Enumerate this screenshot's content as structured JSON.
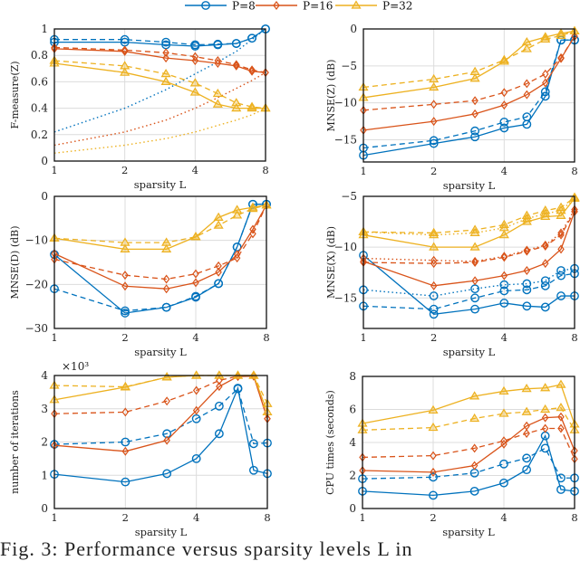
{
  "legend": [
    {
      "label": "P=8",
      "color": "#0072BD",
      "marker": "circle"
    },
    {
      "label": "P=16",
      "color": "#D95319",
      "marker": "diamond"
    },
    {
      "label": "P=32",
      "color": "#EDB120",
      "marker": "triangle"
    }
  ],
  "caption": "Fig. 3:  Performance versus sparsity levels L in",
  "chart_data": [
    {
      "type": "line",
      "ylabel": "F-measure(Z)",
      "xlabel": "sparsity L",
      "x": [
        1,
        2,
        3,
        4,
        5,
        6,
        7,
        8
      ],
      "xscale": "log2",
      "xticks": [
        1,
        2,
        4,
        8
      ],
      "ylim": [
        0,
        1
      ],
      "yticks": [
        "0",
        "0.2",
        "0.4",
        "0.6",
        "0.8",
        "1"
      ],
      "ytick_values": [
        0,
        0.2,
        0.4,
        0.6,
        0.8,
        1
      ],
      "grid": true,
      "series": [
        {
          "group": 0,
          "style": "solid",
          "markers": true,
          "values": [
            0.9,
            0.9,
            0.88,
            0.87,
            0.88,
            0.89,
            0.93,
            1.0
          ]
        },
        {
          "group": 0,
          "style": "dashed",
          "markers": true,
          "values": [
            0.92,
            0.92,
            0.9,
            0.88,
            0.885,
            0.89,
            0.93,
            1.0
          ]
        },
        {
          "group": 0,
          "style": "dotted",
          "markers": false,
          "values": [
            0.22,
            0.4,
            0.54,
            0.66,
            0.75,
            0.83,
            0.92,
            1.0
          ]
        },
        {
          "group": 1,
          "style": "solid",
          "markers": true,
          "values": [
            0.85,
            0.83,
            0.78,
            0.76,
            0.74,
            0.72,
            0.68,
            0.67
          ]
        },
        {
          "group": 1,
          "style": "dashed",
          "markers": true,
          "values": [
            0.86,
            0.84,
            0.82,
            0.79,
            0.76,
            0.73,
            0.69,
            0.67
          ]
        },
        {
          "group": 1,
          "style": "dotted",
          "markers": false,
          "values": [
            0.12,
            0.22,
            0.31,
            0.4,
            0.48,
            0.55,
            0.61,
            0.67
          ]
        },
        {
          "group": 2,
          "style": "solid",
          "markers": true,
          "values": [
            0.74,
            0.67,
            0.6,
            0.52,
            0.43,
            0.4,
            0.4,
            0.4
          ]
        },
        {
          "group": 2,
          "style": "dashed",
          "markers": true,
          "values": [
            0.76,
            0.72,
            0.66,
            0.59,
            0.51,
            0.44,
            0.41,
            0.4
          ]
        },
        {
          "group": 2,
          "style": "dotted",
          "markers": false,
          "values": [
            0.06,
            0.12,
            0.17,
            0.22,
            0.27,
            0.31,
            0.35,
            0.4
          ]
        }
      ]
    },
    {
      "type": "line",
      "ylabel": "MNSE(Z) (dB)",
      "xlabel": "sparsity L",
      "x": [
        1,
        2,
        3,
        4,
        5,
        6,
        7,
        8
      ],
      "xscale": "log2",
      "xticks": [
        1,
        2,
        4,
        8
      ],
      "ylim": [
        -18,
        0
      ],
      "yticks": [
        "−15",
        "−10",
        "−5",
        "0"
      ],
      "ytick_values": [
        -15,
        -10,
        -5,
        0
      ],
      "grid": true,
      "series": [
        {
          "group": 0,
          "style": "solid",
          "markers": true,
          "values": [
            -17.1,
            -15.5,
            -14.6,
            -13.4,
            -12.9,
            -9.1,
            -1.5,
            -1.5
          ]
        },
        {
          "group": 0,
          "style": "dashed",
          "markers": true,
          "values": [
            -16.1,
            -15.1,
            -13.8,
            -12.6,
            -11.9,
            -8.5,
            -1.5,
            -1.5
          ]
        },
        {
          "group": 1,
          "style": "solid",
          "markers": true,
          "values": [
            -13.7,
            -12.5,
            -11.5,
            -10.3,
            -8.9,
            -7.3,
            -4.0,
            -1.0
          ]
        },
        {
          "group": 1,
          "style": "dashed",
          "markers": true,
          "values": [
            -11.0,
            -10.2,
            -9.7,
            -8.6,
            -7.4,
            -6.1,
            -3.9,
            -1.0
          ]
        },
        {
          "group": 2,
          "style": "solid",
          "markers": true,
          "values": [
            -9.3,
            -7.9,
            -6.7,
            -4.4,
            -1.8,
            -1.1,
            -0.6,
            -0.3
          ]
        },
        {
          "group": 2,
          "style": "dashed",
          "markers": true,
          "values": [
            -7.9,
            -6.8,
            -5.8,
            -4.2,
            -2.7,
            -1.4,
            -0.9,
            -0.3
          ]
        }
      ]
    },
    {
      "type": "line",
      "ylabel": "MNSE(D) (dB)",
      "xlabel": "sparsity L",
      "x": [
        1,
        2,
        3,
        4,
        5,
        6,
        7,
        8
      ],
      "xscale": "log2",
      "xticks": [
        1,
        2,
        4,
        8
      ],
      "ylim": [
        -30,
        0
      ],
      "yticks": [
        "−30",
        "−20",
        "−10",
        "0"
      ],
      "ytick_values": [
        -30,
        -20,
        -10,
        0
      ],
      "grid": true,
      "series": [
        {
          "group": 0,
          "style": "solid",
          "markers": true,
          "values": [
            -13.2,
            -26.5,
            -25.2,
            -22.9,
            -19.8,
            -11.5,
            -1.8,
            -1.8
          ]
        },
        {
          "group": 0,
          "style": "dashed",
          "markers": true,
          "values": [
            -21.0,
            -26.0,
            -25.2,
            -22.7,
            -19.8,
            -11.5,
            -1.8,
            -1.8
          ]
        },
        {
          "group": 1,
          "style": "solid",
          "markers": true,
          "values": [
            -13.0,
            -20.4,
            -21.0,
            -19.6,
            -17.2,
            -13.2,
            -7.5,
            -2.0
          ]
        },
        {
          "group": 1,
          "style": "dashed",
          "markers": true,
          "values": [
            -14.3,
            -17.9,
            -18.8,
            -17.6,
            -15.8,
            -14.0,
            -8.5,
            -2.0
          ]
        },
        {
          "group": 2,
          "style": "solid",
          "markers": true,
          "values": [
            -9.5,
            -12.0,
            -12.0,
            -9.2,
            -4.8,
            -3.1,
            -2.5,
            -2.0
          ]
        },
        {
          "group": 2,
          "style": "dashed",
          "markers": true,
          "values": [
            -9.5,
            -10.5,
            -10.5,
            -9.2,
            -6.6,
            -4.3,
            -2.8,
            -2.0
          ]
        }
      ]
    },
    {
      "type": "line",
      "ylabel": "MNSE(X) (dB)",
      "xlabel": "sparsity L",
      "x": [
        1,
        2,
        3,
        4,
        5,
        6,
        7,
        8
      ],
      "xscale": "log2",
      "xticks": [
        1,
        2,
        4,
        8
      ],
      "ylim": [
        -18,
        -5
      ],
      "yticks": [
        "−15",
        "−10",
        "−5"
      ],
      "ytick_values": [
        -15,
        -10,
        -5
      ],
      "grid": true,
      "series": [
        {
          "group": 0,
          "style": "solid",
          "markers": true,
          "values": [
            -10.8,
            -16.6,
            -16.1,
            -15.5,
            -15.8,
            -15.9,
            -14.8,
            -14.8
          ]
        },
        {
          "group": 0,
          "style": "dashed",
          "markers": true,
          "values": [
            -15.8,
            -16.1,
            -15.0,
            -14.3,
            -14.2,
            -13.8,
            -12.8,
            -12.6
          ]
        },
        {
          "group": 0,
          "style": "dotted",
          "markers": true,
          "values": [
            -14.2,
            -14.8,
            -14.1,
            -13.7,
            -13.6,
            -13.3,
            -12.3,
            -12.1
          ]
        },
        {
          "group": 1,
          "style": "solid",
          "markers": true,
          "values": [
            -11.4,
            -13.8,
            -13.3,
            -12.8,
            -12.3,
            -11.6,
            -10.2,
            -6.5
          ]
        },
        {
          "group": 1,
          "style": "dashed",
          "markers": true,
          "values": [
            -11.5,
            -11.6,
            -11.5,
            -11.0,
            -10.4,
            -9.9,
            -8.8,
            -6.5
          ]
        },
        {
          "group": 1,
          "style": "dotted",
          "markers": true,
          "values": [
            -11.1,
            -11.3,
            -11.4,
            -10.9,
            -10.3,
            -9.8,
            -8.6,
            -6.3
          ]
        },
        {
          "group": 2,
          "style": "solid",
          "markers": true,
          "values": [
            -8.8,
            -10.0,
            -10.0,
            -8.8,
            -7.5,
            -7.0,
            -6.9,
            -5.2
          ]
        },
        {
          "group": 2,
          "style": "dashed",
          "markers": true,
          "values": [
            -8.5,
            -8.6,
            -8.3,
            -7.8,
            -6.9,
            -6.4,
            -6.1,
            -5.1
          ]
        },
        {
          "group": 2,
          "style": "dotted",
          "markers": true,
          "values": [
            -8.5,
            -8.8,
            -8.6,
            -8.1,
            -7.2,
            -6.7,
            -6.4,
            -5.2
          ]
        }
      ]
    },
    {
      "type": "line",
      "ylabel": "number of iterations",
      "xlabel": "sparsity L",
      "multiplier": "×10³",
      "x": [
        1,
        2,
        3,
        4,
        5,
        6,
        7,
        8
      ],
      "xscale": "log2",
      "xticks": [
        1,
        2,
        4,
        8
      ],
      "ylim": [
        0,
        4
      ],
      "yticks": [
        "0",
        "1",
        "2",
        "3",
        "4"
      ],
      "ytick_values": [
        0,
        1,
        2,
        3,
        4
      ],
      "grid": true,
      "series": [
        {
          "group": 0,
          "style": "solid",
          "markers": true,
          "values": [
            1.03,
            0.8,
            1.05,
            1.5,
            2.25,
            3.62,
            1.15,
            1.05
          ]
        },
        {
          "group": 0,
          "style": "dashed",
          "markers": true,
          "values": [
            1.93,
            2.0,
            2.25,
            2.7,
            3.08,
            3.6,
            1.95,
            1.97
          ]
        },
        {
          "group": 1,
          "style": "solid",
          "markers": true,
          "values": [
            1.9,
            1.72,
            2.05,
            2.95,
            3.67,
            3.97,
            3.98,
            2.7
          ]
        },
        {
          "group": 1,
          "style": "dashed",
          "markers": true,
          "values": [
            2.85,
            2.9,
            3.23,
            3.55,
            3.85,
            3.98,
            4.0,
            2.7
          ]
        },
        {
          "group": 2,
          "style": "solid",
          "markers": true,
          "values": [
            3.27,
            3.65,
            3.95,
            4.0,
            4.0,
            4.0,
            4.0,
            2.9
          ]
        },
        {
          "group": 2,
          "style": "dashed",
          "markers": true,
          "values": [
            3.7,
            3.66,
            3.95,
            4.0,
            4.0,
            4.0,
            4.0,
            3.15
          ]
        }
      ]
    },
    {
      "type": "line",
      "ylabel": "CPU times (seconds)",
      "xlabel": "sparsity L",
      "x": [
        1,
        2,
        3,
        4,
        5,
        6,
        7,
        8
      ],
      "xscale": "log2",
      "xticks": [
        1,
        2,
        4,
        8
      ],
      "ylim": [
        0,
        8
      ],
      "yticks": [
        "0",
        "2",
        "4",
        "6",
        "8"
      ],
      "ytick_values": [
        0,
        2,
        4,
        6,
        8
      ],
      "grid": true,
      "series": [
        {
          "group": 0,
          "style": "solid",
          "markers": true,
          "values": [
            1.05,
            0.8,
            1.05,
            1.55,
            2.35,
            4.4,
            1.15,
            1.05
          ]
        },
        {
          "group": 0,
          "style": "dashed",
          "markers": true,
          "values": [
            1.8,
            1.9,
            2.15,
            2.7,
            3.05,
            3.65,
            1.85,
            1.85
          ]
        },
        {
          "group": 1,
          "style": "solid",
          "markers": true,
          "values": [
            2.3,
            2.2,
            2.6,
            3.9,
            5.0,
            5.5,
            5.55,
            3.5
          ]
        },
        {
          "group": 1,
          "style": "dashed",
          "markers": true,
          "values": [
            3.1,
            3.2,
            3.65,
            4.1,
            4.55,
            4.85,
            4.85,
            3.0
          ]
        },
        {
          "group": 2,
          "style": "solid",
          "markers": true,
          "values": [
            5.15,
            5.95,
            6.8,
            7.1,
            7.25,
            7.3,
            7.5,
            5.1
          ]
        },
        {
          "group": 2,
          "style": "dashed",
          "markers": true,
          "values": [
            4.75,
            4.9,
            5.45,
            5.75,
            5.85,
            6.0,
            6.1,
            4.75
          ]
        }
      ]
    }
  ]
}
